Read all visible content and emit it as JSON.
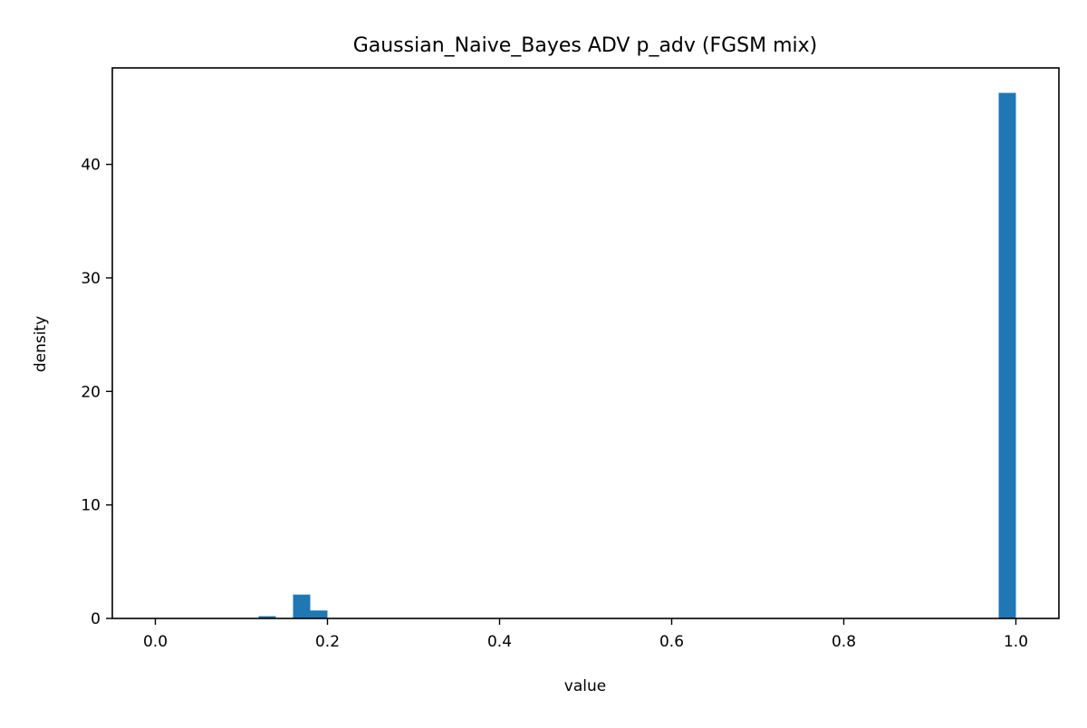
{
  "chart_data": {
    "type": "bar",
    "subtype": "histogram",
    "title": "Gaussian_Naive_Bayes ADV p_adv (FGSM mix)",
    "xlabel": "value",
    "ylabel": "density",
    "xlim": [
      -0.05,
      1.05
    ],
    "ylim": [
      0,
      48.5
    ],
    "grid": false,
    "bin_width": 0.02,
    "x_ticks": [
      0.0,
      0.2,
      0.4,
      0.6,
      0.8,
      1.0
    ],
    "x_tick_labels": [
      "0.0",
      "0.2",
      "0.4",
      "0.6",
      "0.8",
      "1.0"
    ],
    "y_ticks": [
      0,
      10,
      20,
      30,
      40
    ],
    "y_tick_labels": [
      "0",
      "10",
      "20",
      "30",
      "40"
    ],
    "bins": [
      {
        "start": 0.12,
        "end": 0.14,
        "value": 0.2
      },
      {
        "start": 0.16,
        "end": 0.18,
        "value": 2.1
      },
      {
        "start": 0.18,
        "end": 0.2,
        "value": 0.7
      },
      {
        "start": 0.98,
        "end": 1.0,
        "value": 46.3
      }
    ],
    "bar_color": "#1f77b4"
  }
}
